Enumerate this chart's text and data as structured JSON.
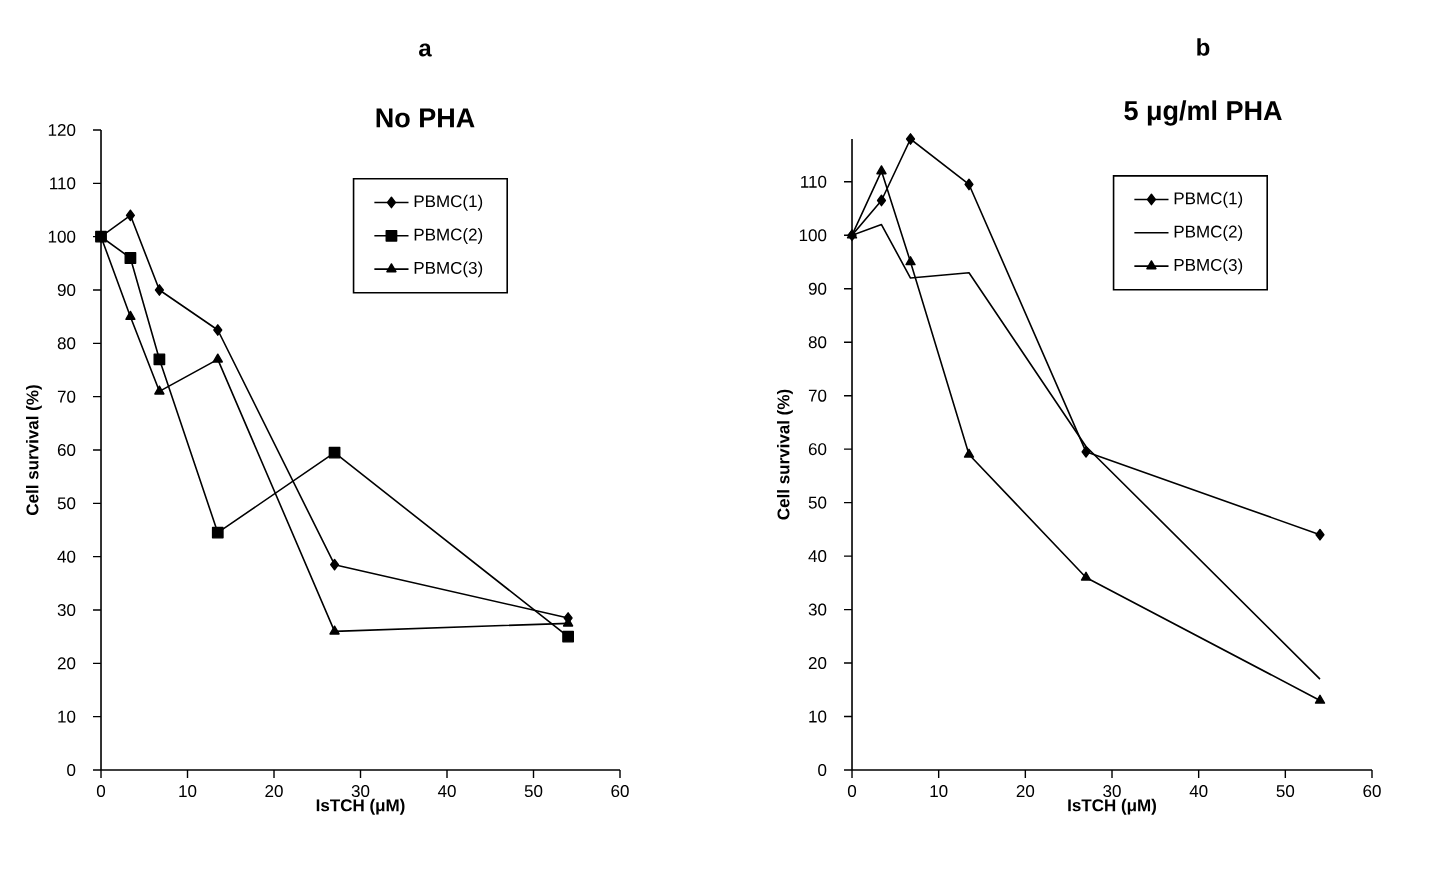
{
  "chart_data": [
    {
      "type": "line",
      "title": "a",
      "subtitle": "No PHA",
      "xlabel": "IsTCH (μM)",
      "ylabel": "Cell survival (%)",
      "x": [
        0,
        3.4,
        6.75,
        13.5,
        27,
        54
      ],
      "xlim": [
        0,
        60
      ],
      "xticks": [
        0,
        10,
        20,
        30,
        40,
        50,
        60
      ],
      "ylim": [
        0,
        120
      ],
      "yticks": [
        0,
        10,
        20,
        30,
        40,
        50,
        60,
        70,
        80,
        90,
        100,
        110,
        120
      ],
      "legend": "top right",
      "line_style": "solid",
      "series": [
        {
          "name": "PBMC(1)",
          "color": "#000000",
          "marker": "diamond",
          "values": [
            100,
            104,
            90,
            82.5,
            38.5,
            28.5
          ]
        },
        {
          "name": "PBMC(2)",
          "color": "#000000",
          "marker": "square",
          "values": [
            100,
            96,
            77,
            44.5,
            59.5,
            25
          ]
        },
        {
          "name": "PBMC(3)",
          "color": "#000000",
          "marker": "triangle",
          "values": [
            100,
            85,
            71,
            77,
            26,
            27.5
          ]
        }
      ]
    },
    {
      "type": "line",
      "title": "b",
      "subtitle": "5 μg/ml PHA",
      "xlabel": "IsTCH (μM)",
      "ylabel": "Cell survival (%)",
      "x": [
        0,
        3.4,
        6.75,
        13.5,
        27,
        54
      ],
      "xlim": [
        0,
        60
      ],
      "xticks": [
        0,
        10,
        20,
        30,
        40,
        50,
        60
      ],
      "ylim": [
        0,
        118
      ],
      "yticks": [
        0,
        10,
        20,
        30,
        40,
        50,
        60,
        70,
        80,
        90,
        100,
        110
      ],
      "legend": "top right",
      "line_style": "solid",
      "series": [
        {
          "name": "PBMC(1)",
          "color": "#000000",
          "marker": "diamond",
          "values": [
            100,
            106.5,
            118,
            109.5,
            59.5,
            44
          ]
        },
        {
          "name": "PBMC(2)",
          "color": "#000000",
          "marker": "none",
          "values": [
            100,
            102,
            92,
            93,
            60.5,
            17
          ]
        },
        {
          "name": "PBMC(3)",
          "color": "#000000",
          "marker": "triangle",
          "values": [
            100,
            112,
            95,
            59,
            36,
            13
          ]
        }
      ]
    }
  ]
}
